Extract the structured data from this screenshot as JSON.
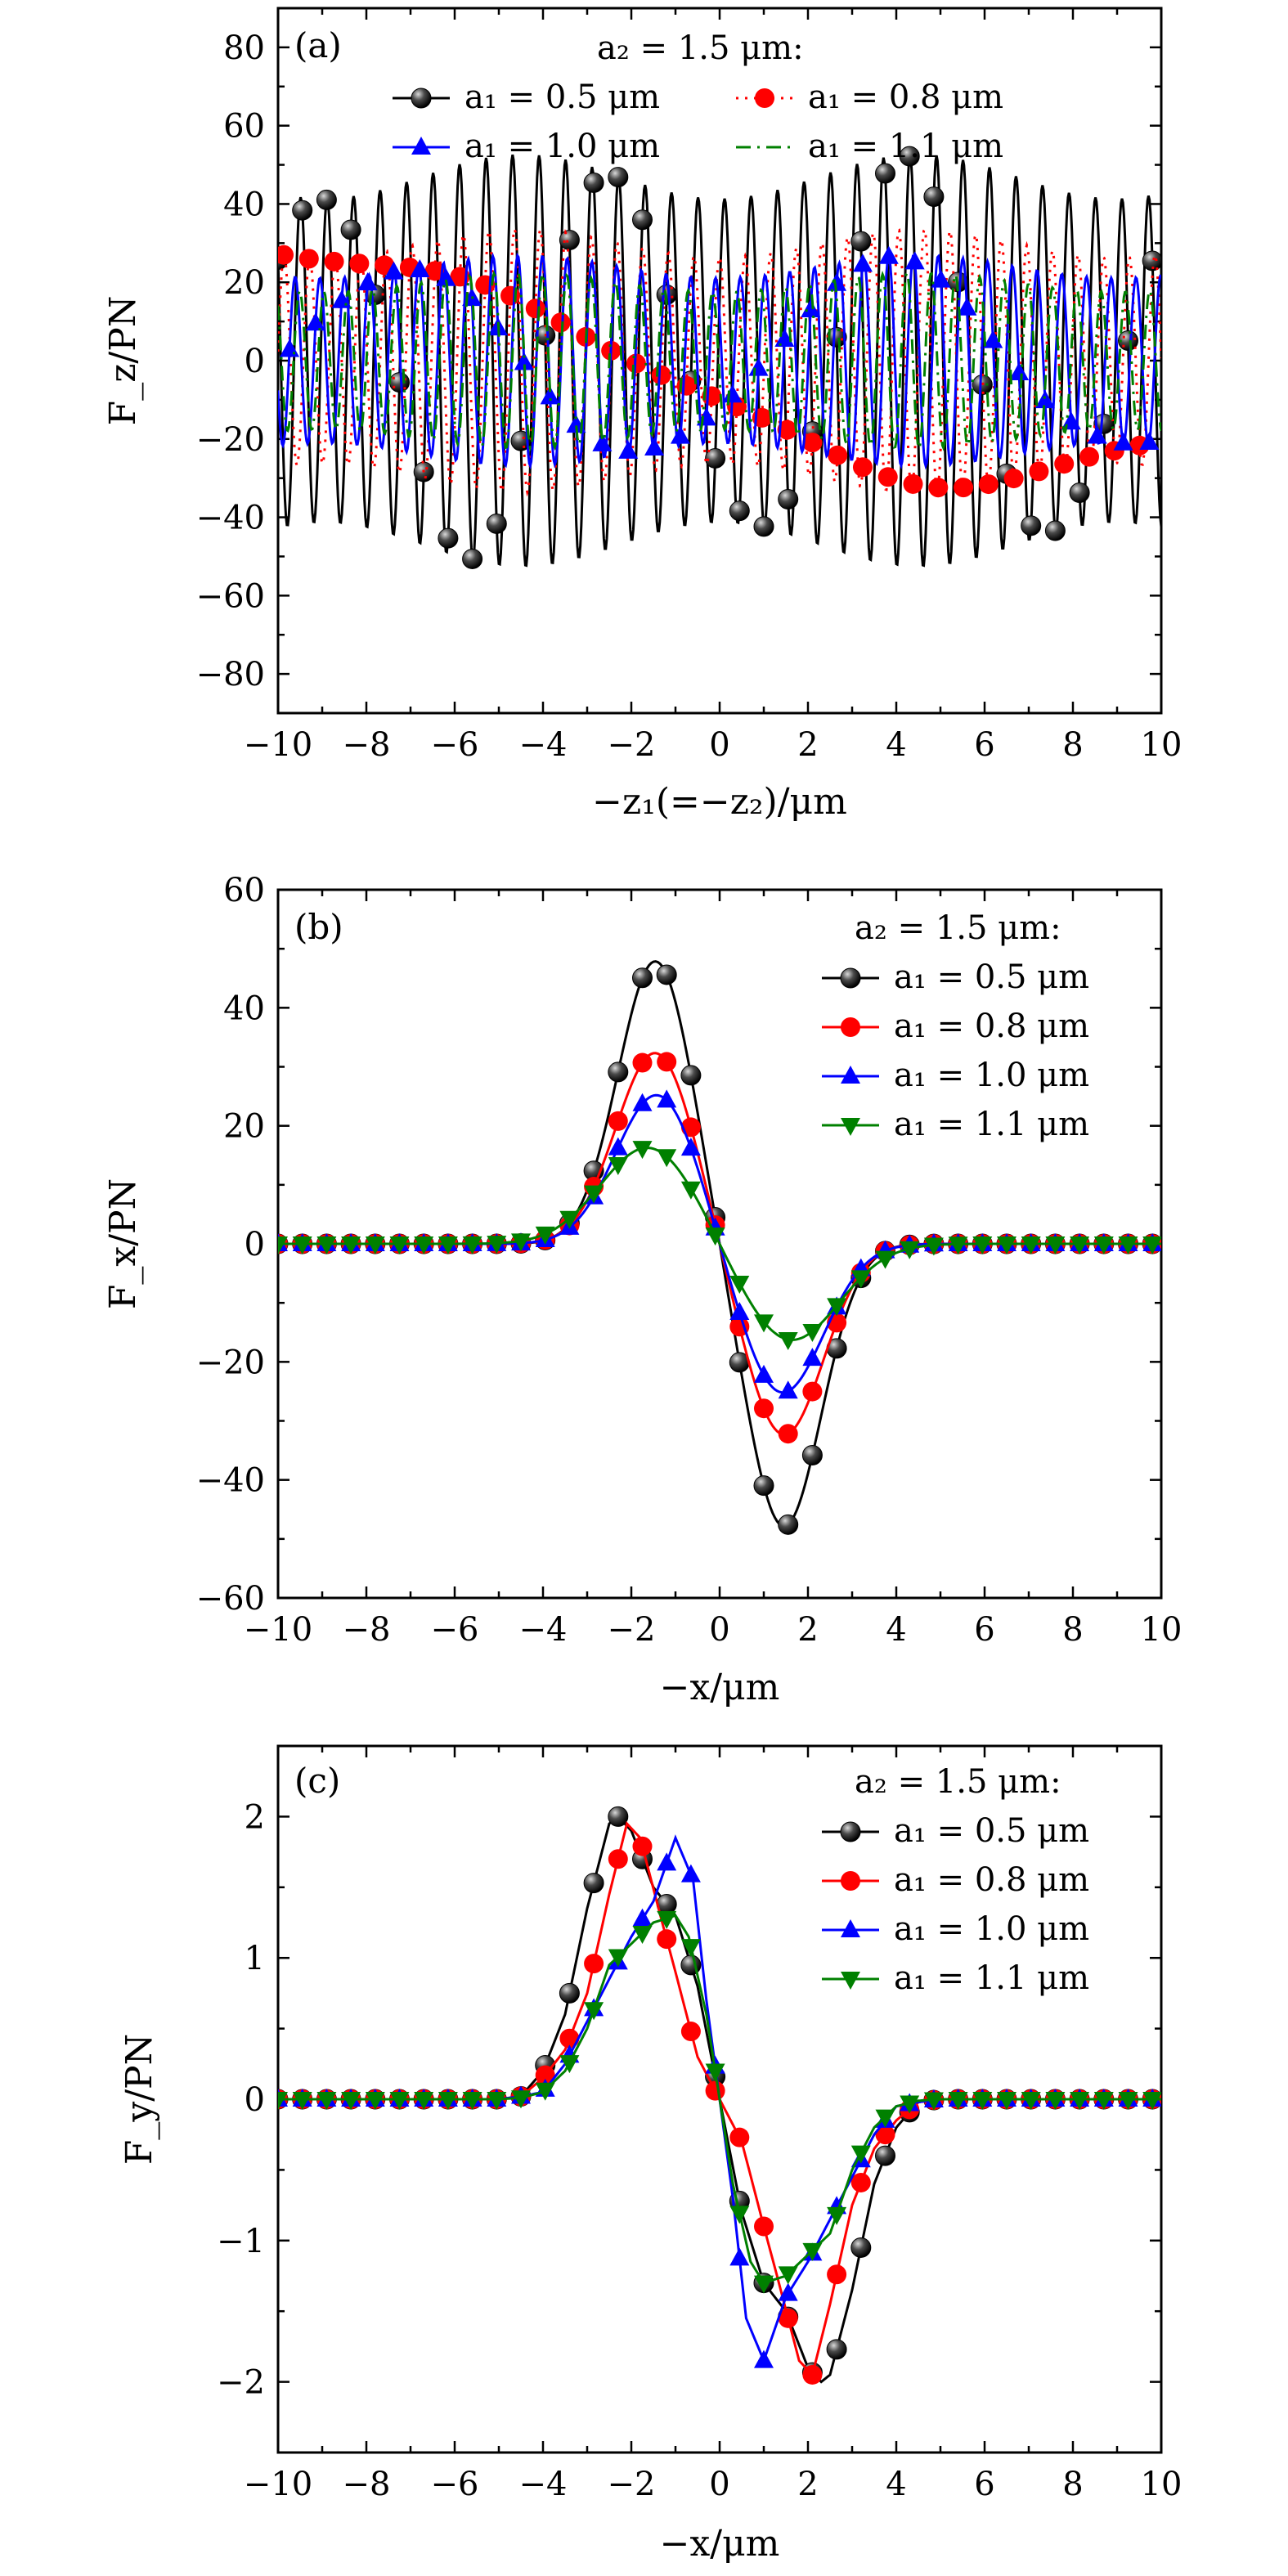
{
  "colors": {
    "a1_0_5": "#000000",
    "a1_0_8": "#ff0000",
    "a1_1_0": "#0000ff",
    "a1_1_1": "#008000"
  },
  "chart_data": [
    {
      "type": "line",
      "panel_label": "(a)",
      "xlabel": "−z₁(=−z₂)/μm",
      "ylabel": "F_z/PN",
      "xlim": [
        -10,
        10
      ],
      "ylim": [
        -90,
        90
      ],
      "xticks": [
        -10,
        -8,
        -6,
        -4,
        -2,
        0,
        2,
        4,
        6,
        8,
        10
      ],
      "xtick_labels": [
        "−10",
        "−8",
        "−6",
        "−4",
        "−2",
        "0",
        "2",
        "4",
        "6",
        "8",
        "10"
      ],
      "yticks": [
        -80,
        -60,
        -40,
        -20,
        0,
        20,
        40,
        60,
        80
      ],
      "ytick_labels": [
        "−80",
        "−60",
        "−40",
        "−20",
        "0",
        "20",
        "40",
        "60",
        "80"
      ],
      "legend_title": "a₂ = 1.5 μm:",
      "series": [
        {
          "name": "a₁ = 0.5 μm",
          "key": "a1_0_5",
          "marker": "sphere",
          "dash": "solid",
          "amplitude": 47,
          "period": 0.6,
          "phase": 0.4,
          "x0": -10,
          "x1": 10
        },
        {
          "name": "a₁ = 0.8 μm",
          "key": "a1_0_8",
          "marker": "circle",
          "dash": "dotted",
          "amplitude": 30,
          "period": 0.58,
          "phase": 1.6,
          "x0": -10,
          "x1": 10
        },
        {
          "name": "a₁ = 1.0 μm",
          "key": "a1_1_0",
          "marker": "triangle-up",
          "dash": "solid",
          "amplitude": 24,
          "period": 0.56,
          "phase": 2.6,
          "x0": -10,
          "x1": 10
        },
        {
          "name": "a₁ = 1.1 μm",
          "key": "a1_1_1",
          "marker": "none",
          "dash": "dashdot",
          "amplitude": 20,
          "period": 0.55,
          "phase": 3.4,
          "x0": -10,
          "x1": 10
        }
      ]
    },
    {
      "type": "line",
      "panel_label": "(b)",
      "xlabel": "−x/μm",
      "ylabel": "F_x/PN",
      "xlim": [
        -10,
        10
      ],
      "ylim": [
        -60,
        60
      ],
      "xticks": [
        -10,
        -8,
        -6,
        -4,
        -2,
        0,
        2,
        4,
        6,
        8,
        10
      ],
      "xtick_labels": [
        "−10",
        "−8",
        "−6",
        "−4",
        "−2",
        "0",
        "2",
        "4",
        "6",
        "8",
        "10"
      ],
      "yticks": [
        -60,
        -40,
        -20,
        0,
        20,
        40,
        60
      ],
      "ytick_labels": [
        "−60",
        "−40",
        "−20",
        "0",
        "20",
        "40",
        "60"
      ],
      "legend_title": "a₂ = 1.5 μm:",
      "series": [
        {
          "name": "a₁ = 0.5 μm",
          "key": "a1_0_5",
          "marker": "sphere",
          "peak": 48,
          "center": 1.45,
          "width": 0.85
        },
        {
          "name": "a₁ = 0.8 μm",
          "key": "a1_0_8",
          "marker": "circle",
          "peak": 32.5,
          "center": 1.45,
          "width": 0.9
        },
        {
          "name": "a₁ = 1.0 μm",
          "key": "a1_1_0",
          "marker": "triangle-up",
          "peak": 25.5,
          "center": 1.4,
          "width": 0.95
        },
        {
          "name": "a₁ = 1.1 μm",
          "key": "a1_1_1",
          "marker": "triangle-down",
          "peak": 16.5,
          "center": 1.6,
          "width": 1.1
        }
      ]
    },
    {
      "type": "line",
      "panel_label": "(c)",
      "xlabel": "−x/μm",
      "ylabel": "F_y/PN",
      "xlim": [
        -10,
        10
      ],
      "ylim": [
        -2.5,
        2.5
      ],
      "xticks": [
        -10,
        -8,
        -6,
        -4,
        -2,
        0,
        2,
        4,
        6,
        8,
        10
      ],
      "xtick_labels": [
        "−10",
        "−8",
        "−6",
        "−4",
        "−2",
        "0",
        "2",
        "4",
        "6",
        "8",
        "10"
      ],
      "yticks": [
        -2,
        -1,
        0,
        1,
        2
      ],
      "ytick_labels": [
        "−2",
        "−1",
        "0",
        "1",
        "2"
      ],
      "legend_title": "a₂ = 1.5 μm:",
      "series": [
        {
          "name": "a₁ = 0.5 μm",
          "key": "a1_0_5",
          "marker": "sphere",
          "points": [
            [
              -10,
              0
            ],
            [
              -5,
              0
            ],
            [
              -4.5,
              0.02
            ],
            [
              -4,
              0.2
            ],
            [
              -3.5,
              0.6
            ],
            [
              -3,
              1.35
            ],
            [
              -2.5,
              1.95
            ],
            [
              -2.3,
              2.0
            ],
            [
              -2,
              1.9
            ],
            [
              -1.5,
              1.5
            ],
            [
              -1.0,
              1.3
            ],
            [
              -0.5,
              0.8
            ],
            [
              0,
              0
            ]
          ]
        },
        {
          "name": "a₁ = 0.8 μm",
          "key": "a1_0_8",
          "marker": "circle",
          "points": [
            [
              -10,
              0
            ],
            [
              -5,
              0
            ],
            [
              -4.5,
              0.02
            ],
            [
              -4,
              0.15
            ],
            [
              -3.5,
              0.35
            ],
            [
              -3,
              0.75
            ],
            [
              -2.5,
              1.45
            ],
            [
              -2.1,
              1.95
            ],
            [
              -1.8,
              1.85
            ],
            [
              -1.3,
              1.25
            ],
            [
              -1,
              0.9
            ],
            [
              -0.5,
              0.3
            ],
            [
              0,
              0
            ]
          ]
        },
        {
          "name": "a₁ = 1.0 μm",
          "key": "a1_1_0",
          "marker": "triangle-up",
          "points": [
            [
              -10,
              0
            ],
            [
              -5,
              0
            ],
            [
              -4.5,
              0.02
            ],
            [
              -4,
              0.05
            ],
            [
              -3.5,
              0.25
            ],
            [
              -3,
              0.55
            ],
            [
              -2,
              1.15
            ],
            [
              -1.5,
              1.4
            ],
            [
              -1.0,
              1.85
            ],
            [
              -0.6,
              1.55
            ],
            [
              -0.3,
              0.7
            ],
            [
              0,
              0
            ]
          ]
        },
        {
          "name": "a₁ = 1.1 μm",
          "key": "a1_1_1",
          "marker": "triangle-down",
          "points": [
            [
              -10,
              0
            ],
            [
              -5,
              0
            ],
            [
              -4.5,
              0.01
            ],
            [
              -4,
              0.05
            ],
            [
              -3.5,
              0.2
            ],
            [
              -3,
              0.5
            ],
            [
              -2.5,
              0.95
            ],
            [
              -2,
              1.1
            ],
            [
              -1.5,
              1.25
            ],
            [
              -1,
              1.3
            ],
            [
              -0.7,
              1.15
            ],
            [
              -0.3,
              0.6
            ],
            [
              0,
              0
            ]
          ]
        }
      ]
    }
  ]
}
